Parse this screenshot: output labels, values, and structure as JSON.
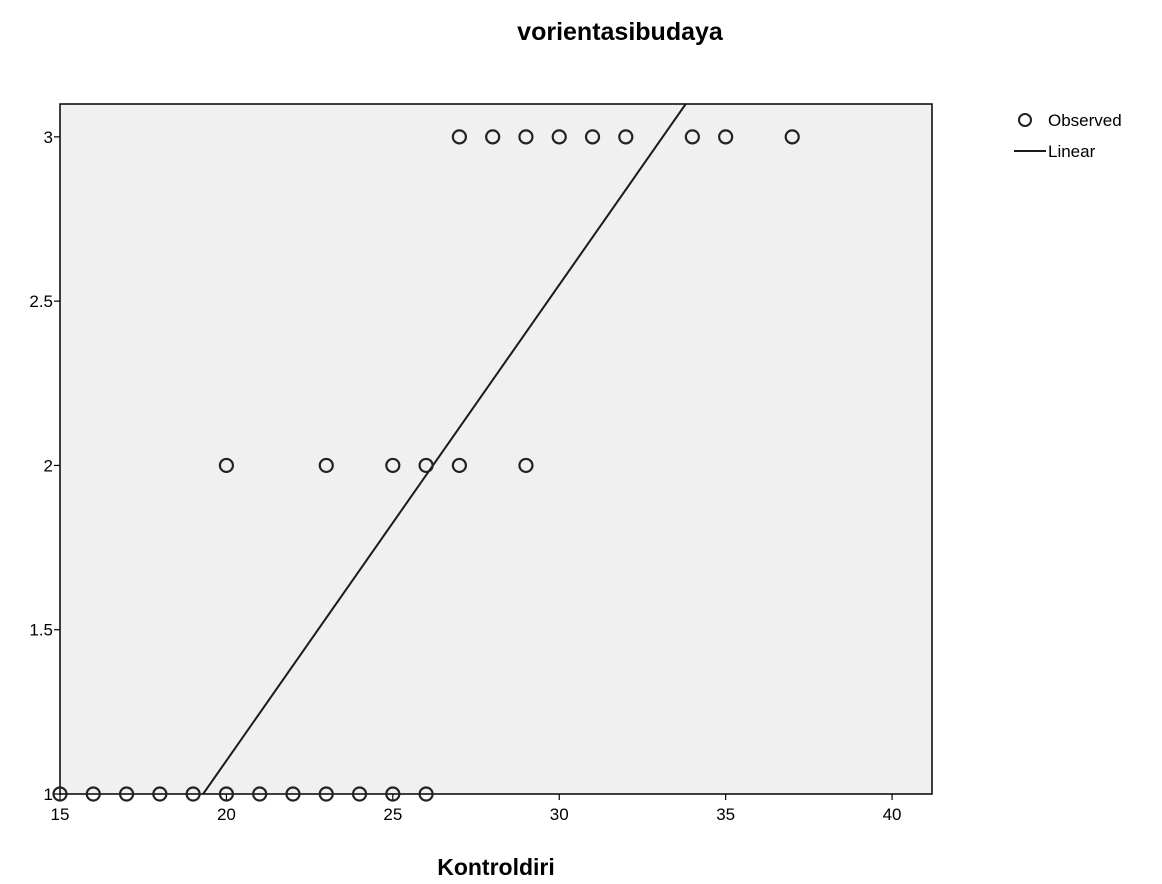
{
  "chart_data": {
    "type": "scatter",
    "title": "vorientasibudaya",
    "xlabel": "Kontroldiri",
    "ylabel": "",
    "xlim": [
      15,
      41.2
    ],
    "ylim": [
      1,
      3.1
    ],
    "xticks": [
      15,
      20,
      25,
      30,
      35,
      40
    ],
    "yticks": [
      1,
      1.5,
      2,
      2.5,
      3
    ],
    "xtick_labels": [
      "15",
      "20",
      "25",
      "30",
      "35",
      "40"
    ],
    "ytick_labels": [
      "1",
      "1.5",
      "2",
      "2.5",
      "3"
    ],
    "grid": false,
    "legend_position": "top-right",
    "legend": [
      {
        "label": "Observed",
        "marker": "circle"
      },
      {
        "label": "Linear",
        "marker": "line"
      }
    ],
    "series": [
      {
        "name": "Observed",
        "type": "scatter",
        "points": [
          {
            "x": 15,
            "y": 1
          },
          {
            "x": 16,
            "y": 1
          },
          {
            "x": 17,
            "y": 1
          },
          {
            "x": 18,
            "y": 1
          },
          {
            "x": 19,
            "y": 1
          },
          {
            "x": 20,
            "y": 1
          },
          {
            "x": 21,
            "y": 1
          },
          {
            "x": 22,
            "y": 1
          },
          {
            "x": 23,
            "y": 1
          },
          {
            "x": 24,
            "y": 1
          },
          {
            "x": 25,
            "y": 1
          },
          {
            "x": 26,
            "y": 1
          },
          {
            "x": 20,
            "y": 2
          },
          {
            "x": 23,
            "y": 2
          },
          {
            "x": 25,
            "y": 2
          },
          {
            "x": 26,
            "y": 2
          },
          {
            "x": 27,
            "y": 2
          },
          {
            "x": 29,
            "y": 2
          },
          {
            "x": 27,
            "y": 3
          },
          {
            "x": 28,
            "y": 3
          },
          {
            "x": 29,
            "y": 3
          },
          {
            "x": 30,
            "y": 3
          },
          {
            "x": 31,
            "y": 3
          },
          {
            "x": 32,
            "y": 3
          },
          {
            "x": 34,
            "y": 3
          },
          {
            "x": 35,
            "y": 3
          },
          {
            "x": 37,
            "y": 3
          }
        ]
      },
      {
        "name": "Linear",
        "type": "line",
        "points": [
          {
            "x": 19.3,
            "y": 1
          },
          {
            "x": 33.8,
            "y": 3.1
          }
        ]
      }
    ],
    "colors": {
      "plot_background": "#f0f0f0",
      "marker_stroke": "#222222",
      "line": "#1a1a1a",
      "axis": "#000000"
    }
  }
}
